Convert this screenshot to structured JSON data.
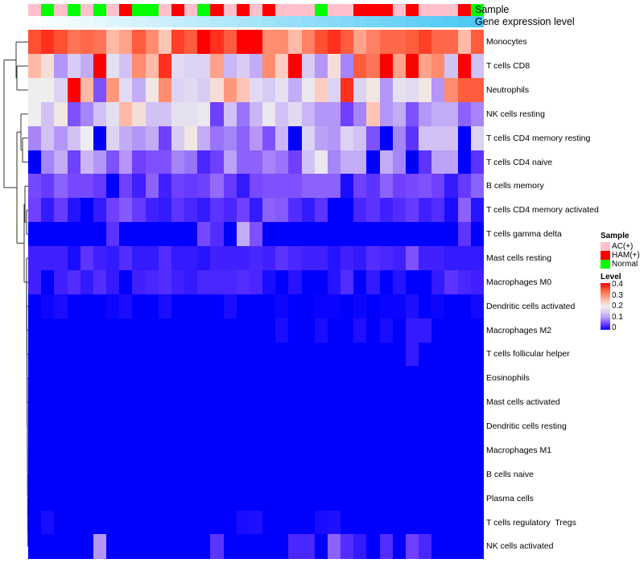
{
  "chart_data": {
    "type": "heatmap",
    "title": "",
    "annotations": {
      "sample_label": "Sample",
      "gene_label": "Gene expression level",
      "sample": [
        "AC(+)",
        "Normal",
        "AC(+)",
        "Normal",
        "AC(+)",
        "Normal",
        "AC(+)",
        "HAM(+)",
        "Normal",
        "Normal",
        "AC(+)",
        "HAM(+)",
        "AC(+)",
        "Normal",
        "HAM(+)",
        "AC(+)",
        "HAM(+)",
        "AC(+)",
        "HAM(+)",
        "AC(+)",
        "AC(+)",
        "AC(+)",
        "Normal",
        "AC(+)",
        "AC(+)",
        "HAM(+)",
        "HAM(+)",
        "HAM(+)",
        "AC(+)",
        "HAM(+)",
        "AC(+)",
        "AC(+)",
        "AC(+)",
        "HAM(+)",
        "Normal"
      ],
      "gene_expression_trend": "increasing left to right",
      "gene_low_color": "#ffffff",
      "gene_high_color": "#4cc8f5"
    },
    "rows": [
      {
        "label": "Monocytes",
        "values": [
          0.35,
          0.37,
          0.35,
          0.32,
          0.33,
          0.32,
          0.26,
          0.28,
          0.34,
          0.3,
          0.25,
          0.36,
          0.34,
          0.4,
          0.37,
          0.34,
          0.4,
          0.4,
          0.3,
          0.3,
          0.26,
          0.31,
          0.35,
          0.37,
          0.34,
          0.28,
          0.31,
          0.33,
          0.33,
          0.34,
          0.36,
          0.33,
          0.33,
          0.26,
          0.34
        ]
      },
      {
        "label": "T cells CD8",
        "values": [
          0.26,
          0.22,
          0.1,
          0.15,
          0.12,
          0.4,
          0.18,
          0.14,
          0.3,
          0.26,
          0.37,
          0.17,
          0.16,
          0.16,
          0.28,
          0.13,
          0.15,
          0.12,
          0.3,
          0.24,
          0.4,
          0.15,
          0.1,
          0.22,
          0.09,
          0.34,
          0.32,
          0.4,
          0.28,
          0.4,
          0.28,
          0.3,
          0.14,
          0.4,
          0.14
        ]
      },
      {
        "label": "Neutrophils",
        "values": [
          0.2,
          0.2,
          0.16,
          0.4,
          0.26,
          0.06,
          0.29,
          0.17,
          0.12,
          0.21,
          0.3,
          0.16,
          0.17,
          0.15,
          0.22,
          0.29,
          0.25,
          0.17,
          0.15,
          0.18,
          0.12,
          0.19,
          0.24,
          0.16,
          0.37,
          0.16,
          0.21,
          0.1,
          0.18,
          0.17,
          0.21,
          0.1,
          0.3,
          0.34,
          0.34
        ]
      },
      {
        "label": "NK cells resting",
        "values": [
          0.2,
          0.14,
          0.21,
          0.06,
          0.09,
          0.14,
          0.18,
          0.26,
          0.22,
          0.14,
          0.14,
          0.18,
          0.18,
          0.19,
          0.05,
          0.14,
          0.08,
          0.13,
          0.19,
          0.14,
          0.17,
          0.13,
          0.1,
          0.1,
          0.05,
          0.09,
          0.25,
          0.1,
          0.12,
          0.06,
          0.1,
          0.12,
          0.12,
          0.07,
          0.09
        ]
      },
      {
        "label": "T cells CD4 memory resting",
        "values": [
          0.09,
          0.14,
          0.1,
          0.14,
          0.2,
          0,
          0.16,
          0.12,
          0.1,
          0.12,
          0.05,
          0.15,
          0.21,
          0.12,
          0.08,
          0.09,
          0.07,
          0.1,
          0.06,
          0.13,
          0,
          0.16,
          0.11,
          0.1,
          0.16,
          0.14,
          0.06,
          0,
          0.09,
          0.04,
          0.14,
          0.14,
          0.14,
          0,
          0.16
        ]
      },
      {
        "label": "T cells CD4 naive",
        "values": [
          0,
          0.09,
          0.12,
          0.05,
          0.13,
          0.1,
          0.06,
          0.1,
          0.05,
          0.06,
          0.06,
          0.09,
          0.08,
          0.03,
          0.05,
          0.11,
          0.07,
          0.07,
          0.09,
          0.08,
          0.05,
          0.14,
          0.19,
          0.09,
          0.12,
          0.12,
          0,
          0.12,
          0.09,
          0,
          0.04,
          0.11,
          0.11,
          0,
          0.04
        ]
      },
      {
        "label": "B cells memory",
        "values": [
          0.055,
          0.045,
          0.07,
          0.055,
          0.055,
          0.045,
          0,
          0.05,
          0.025,
          0.07,
          0.025,
          0.05,
          0.045,
          0.05,
          0.075,
          0.045,
          0.02,
          0.055,
          0.06,
          0.06,
          0.06,
          0.07,
          0.07,
          0.07,
          0.01,
          0.05,
          0.04,
          0.07,
          0.05,
          0.055,
          0.06,
          0.05,
          0.02,
          0.045,
          0.07
        ]
      },
      {
        "label": "T cells CD4 memory activated",
        "values": [
          0.05,
          0.02,
          0.045,
          0.015,
          0,
          0.02,
          0.05,
          0.065,
          0.045,
          0.025,
          0.02,
          0.04,
          0.03,
          0.02,
          0.04,
          0.03,
          0.05,
          0.02,
          0.07,
          0.065,
          0.035,
          0.02,
          0.04,
          0,
          0,
          0.03,
          0.04,
          0.025,
          0.035,
          0.045,
          0.025,
          0.035,
          0.01,
          0.07,
          0.015
        ]
      },
      {
        "label": "T cells gamma delta",
        "values": [
          0,
          0,
          0,
          0,
          0,
          0,
          0.04,
          0,
          0,
          0,
          0,
          0,
          0,
          0.055,
          0.035,
          0,
          0.12,
          0.06,
          0,
          0,
          0,
          0,
          0,
          0,
          0,
          0,
          0,
          0,
          0,
          0,
          0,
          0,
          0,
          0.04,
          0
        ]
      },
      {
        "label": "Mast cells resting",
        "values": [
          0.025,
          0.025,
          0.025,
          0.01,
          0.04,
          0.025,
          0.02,
          0.035,
          0.02,
          0.02,
          0.035,
          0.02,
          0.02,
          0.015,
          0.025,
          0.025,
          0.025,
          0.03,
          0.025,
          0.04,
          0.03,
          0.025,
          0.025,
          0.015,
          0.025,
          0.02,
          0.035,
          0.03,
          0.025,
          0.06,
          0.025,
          0.025,
          0.02,
          0.02,
          0.02
        ]
      },
      {
        "label": "Macrophages M0",
        "values": [
          0.025,
          0,
          0.025,
          0.035,
          0.02,
          0.035,
          0.02,
          0,
          0.025,
          0.03,
          0.035,
          0.025,
          0.02,
          0.03,
          0.03,
          0.03,
          0.035,
          0.03,
          0.01,
          0,
          0.015,
          0,
          0,
          0.015,
          0.035,
          0,
          0.02,
          0,
          0.015,
          0,
          0,
          0.02,
          0.04,
          0.03,
          0.025
        ]
      },
      {
        "label": "Dendritic cells activated",
        "values": [
          0,
          0.005,
          0.01,
          0,
          0,
          0,
          0.005,
          0.01,
          0,
          0,
          0.01,
          0,
          0,
          0,
          0,
          0.01,
          0,
          0,
          0,
          0.005,
          0,
          0,
          0.003,
          0.003,
          0,
          0.005,
          0,
          0.003,
          0.003,
          0.012,
          0,
          0.005,
          0,
          0,
          0.008
        ]
      },
      {
        "label": "Macrophages M2",
        "values": [
          0,
          0,
          0,
          0,
          0,
          0,
          0,
          0,
          0,
          0,
          0,
          0,
          0,
          0,
          0,
          0,
          0,
          0,
          0,
          0.01,
          0,
          0,
          0.01,
          0,
          0,
          0.012,
          0,
          0.01,
          0,
          0.02,
          0.02,
          0,
          0,
          0,
          0
        ]
      },
      {
        "label": "T cells follicular helper",
        "values": [
          0,
          0,
          0,
          0,
          0,
          0,
          0,
          0,
          0,
          0,
          0,
          0,
          0,
          0,
          0,
          0,
          0,
          0,
          0,
          0,
          0,
          0,
          0,
          0,
          0,
          0,
          0,
          0,
          0,
          0.02,
          0,
          0,
          0,
          0,
          0
        ]
      },
      {
        "label": "Eosinophils",
        "values": [
          0,
          0,
          0,
          0,
          0,
          0,
          0,
          0,
          0,
          0,
          0,
          0,
          0,
          0,
          0,
          0,
          0,
          0,
          0,
          0,
          0,
          0,
          0,
          0,
          0,
          0,
          0,
          0,
          0,
          0,
          0,
          0,
          0,
          0,
          0
        ]
      },
      {
        "label": "Mast cells activated",
        "values": [
          0,
          0,
          0,
          0,
          0,
          0,
          0,
          0,
          0,
          0,
          0,
          0,
          0,
          0,
          0,
          0,
          0,
          0,
          0,
          0,
          0,
          0,
          0,
          0,
          0,
          0,
          0,
          0,
          0,
          0,
          0,
          0,
          0,
          0,
          0
        ]
      },
      {
        "label": "Dendritic cells resting",
        "values": [
          0,
          0,
          0,
          0,
          0,
          0,
          0,
          0,
          0,
          0,
          0,
          0,
          0,
          0,
          0,
          0,
          0,
          0,
          0,
          0,
          0,
          0,
          0,
          0,
          0,
          0,
          0,
          0,
          0,
          0,
          0,
          0,
          0,
          0,
          0
        ]
      },
      {
        "label": "Macrophages M1",
        "values": [
          0,
          0,
          0,
          0,
          0,
          0,
          0,
          0,
          0,
          0,
          0,
          0,
          0,
          0,
          0,
          0,
          0,
          0,
          0,
          0,
          0,
          0,
          0,
          0,
          0,
          0,
          0,
          0,
          0,
          0,
          0,
          0,
          0,
          0,
          0
        ]
      },
      {
        "label": "B cells naive",
        "values": [
          0,
          0,
          0,
          0,
          0,
          0,
          0,
          0,
          0,
          0,
          0,
          0,
          0,
          0,
          0,
          0,
          0,
          0,
          0,
          0,
          0,
          0,
          0,
          0,
          0,
          0,
          0,
          0,
          0,
          0,
          0,
          0,
          0,
          0,
          0
        ]
      },
      {
        "label": "Plasma cells",
        "values": [
          0,
          0,
          0,
          0,
          0,
          0,
          0,
          0,
          0,
          0,
          0,
          0,
          0,
          0,
          0,
          0,
          0,
          0,
          0,
          0,
          0,
          0,
          0,
          0,
          0,
          0,
          0,
          0,
          0,
          0,
          0,
          0,
          0,
          0,
          0
        ]
      },
      {
        "label": "T cells regulatory  Tregs",
        "values": [
          0,
          0.01,
          0,
          0,
          0,
          0,
          0,
          0,
          0,
          0,
          0,
          0,
          0,
          0,
          0,
          0,
          0.01,
          0.012,
          0,
          0,
          0,
          0,
          0.01,
          0.012,
          0,
          0,
          0,
          0,
          0,
          0,
          0,
          0,
          0,
          0,
          0
        ]
      },
      {
        "label": "NK cells activated",
        "values": [
          0,
          0,
          0,
          0,
          0,
          0.1,
          0,
          0,
          0,
          0,
          0,
          0,
          0,
          0,
          0.04,
          0,
          0,
          0,
          0,
          0,
          0.03,
          0.03,
          0,
          0.07,
          0.035,
          0.02,
          0,
          0.035,
          0,
          0.05,
          0.03,
          0,
          0,
          0,
          0
        ]
      }
    ],
    "legend": {
      "sample": {
        "title": "Sample",
        "entries": [
          {
            "label": "AC(+)",
            "color": "#ffc0cb"
          },
          {
            "label": "HAM(+)",
            "color": "#ff0000"
          },
          {
            "label": "Normal",
            "color": "#00ff00"
          }
        ]
      },
      "level": {
        "title": "Level",
        "ticks": [
          "0.4",
          "0.3",
          "0.2",
          "0.1",
          "0"
        ],
        "range": [
          0,
          0.4
        ],
        "low_color": "#0000ff",
        "mid_color": "#eeeeee",
        "high_color": "#ff0000"
      },
      "placement": "right"
    }
  }
}
